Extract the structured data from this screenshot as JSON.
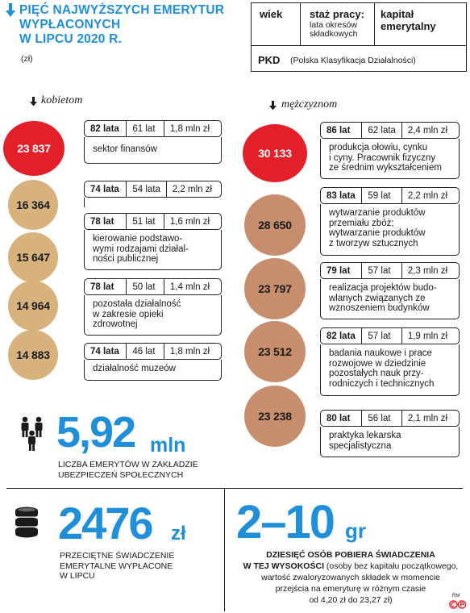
{
  "header": {
    "title_lines": [
      "PIĘĆ NAJWYŻSZYCH EMERYTUR",
      "WYPŁACONYCH",
      "W LIPCU 2020 R."
    ],
    "unit": "(zł)"
  },
  "legend": {
    "age": "wiek",
    "service": "staż pracy:",
    "service_sub": "lata okresów składkowych",
    "capital": "kapitał emerytalny",
    "pkd": "PKD",
    "pkd_desc": "(Polska Klasyfikacja Działalności)"
  },
  "women": {
    "heading": "kobietom",
    "items": [
      {
        "amount": "23 837",
        "age": "82 lata",
        "service": "61 lat",
        "capital": "1,8 mln zł",
        "sector": "sektor finansów",
        "color": "#e3202a"
      },
      {
        "amount": "16 364",
        "age": "74 lata",
        "service": "54 lata",
        "capital": "2,2 mln zł",
        "sector": "",
        "color": "#d8b27c"
      },
      {
        "amount": "15 647",
        "age": "78 lat",
        "service": "51 lat",
        "capital": "1,6 mln zł",
        "sector": "kierowanie podstawo-wymi rodzajami działal-ności publicznej",
        "color": "#d8b27c"
      },
      {
        "amount": "14 964",
        "age": "78 lat",
        "service": "50 lat",
        "capital": "1,4 mln zł",
        "sector": "pozostała działalność w zakresie opieki zdrowotnej",
        "color": "#d8b27c"
      },
      {
        "amount": "14 883",
        "age": "74 lata",
        "service": "46 lat",
        "capital": "1,8 mln zł",
        "sector": "działalność muzeów",
        "color": "#d8b27c"
      }
    ],
    "sector_lines": [
      [
        "sektor finansów"
      ],
      [],
      [
        "kierowanie podstawo-",
        "wymi rodzajami działal-",
        "ności publicznej"
      ],
      [
        "pozostała działalność",
        "w zakresie opieki",
        "zdrowotnej"
      ],
      [
        "działalność muzeów"
      ]
    ]
  },
  "men": {
    "heading": "mężczyznom",
    "items": [
      {
        "amount": "30 133",
        "age": "86 lat",
        "service": "62 lata",
        "capital": "2,4 mln zł",
        "color": "#e3202a"
      },
      {
        "amount": "28 650",
        "age": "83 lata",
        "service": "59 lat",
        "capital": "2,2 mln zł",
        "color": "#c78e6e"
      },
      {
        "amount": "23 797",
        "age": "79 lat",
        "service": "57 lat",
        "capital": "2,3 mln zł",
        "color": "#c78e6e"
      },
      {
        "amount": "23 512",
        "age": "82 lata",
        "service": "57 lat",
        "capital": "1,9 mln zł",
        "color": "#c78e6e"
      },
      {
        "amount": "23 238",
        "age": "80 lat",
        "service": "56 lat",
        "capital": "2,1 mln zł",
        "color": "#c78e6e"
      }
    ],
    "sector_lines": [
      [
        "produkcja ołowiu, cynku",
        "i cyny. Pracownik fizyczny",
        "ze średnim wykształceniem"
      ],
      [
        "wytwarzanie produktów",
        "przemiału zbóż;",
        "wytwarzanie produktów",
        "z tworzyw sztucznych"
      ],
      [
        "realizacja projektów budo-",
        "wlanych związanych ze",
        "wznoszeniem budynków"
      ],
      [
        "badania naukowe i prace",
        "rozwojowe w dziedzinie",
        "pozostałych nauk przy-",
        "rodniczych i technicznych"
      ],
      [
        "praktyka lekarska",
        "specjalistyczna"
      ]
    ]
  },
  "stat_pensioners": {
    "value": "5,92",
    "unit": "mln",
    "caption_lines": [
      "LICZBA EMERYTÓW W ZAKŁADZIE",
      "UBEZPIECZEŃ SPOŁECZNYCH"
    ]
  },
  "stat_average": {
    "value": "2476",
    "unit": "zł",
    "caption_lines": [
      "PRZECIĘTNE ŚWIADCZENIE",
      "EMERYTALNE WYPŁACONE",
      "W LIPCU"
    ]
  },
  "stat_minimum": {
    "value": "2–10",
    "unit": "gr",
    "note_bold_1": "DZIESIĘĆ OSÓB POBIERA ŚWIADCZENIA",
    "note_bold_2": "W TEJ WYSOKOŚCI",
    "note_rest_1": " (osoby bez kapitału początkowego,",
    "note_line_3": "wartość zwaloryzowanych składek w momencie",
    "note_line_4": "przejścia na emeryturę w różnym czasie",
    "note_line_5": "od 4,20 zł do 23,27 zł)"
  },
  "credit": "RM",
  "colors": {
    "accent": "#1e8fd8",
    "red": "#e3202a",
    "tan": "#d8b27c",
    "brown": "#c78e6e"
  }
}
